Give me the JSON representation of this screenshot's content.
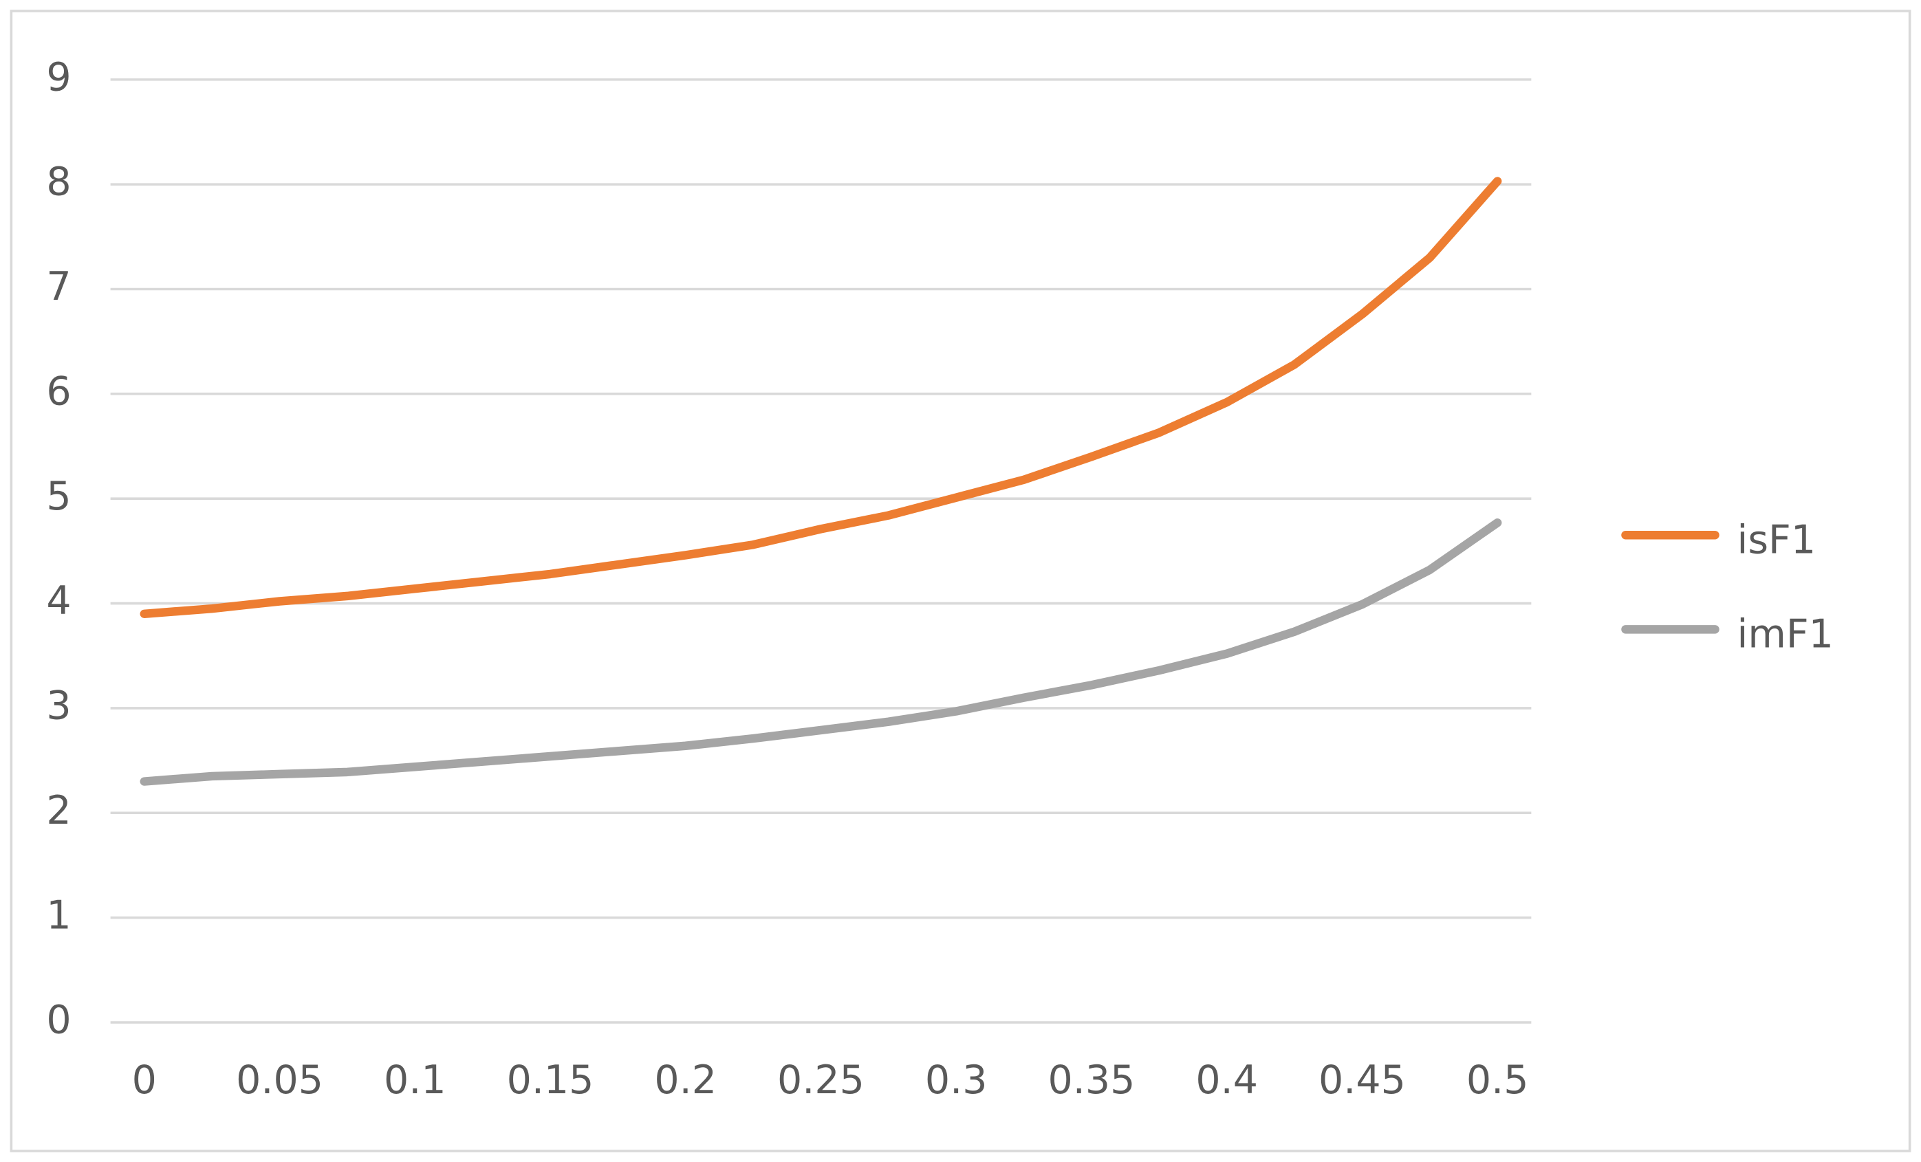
{
  "chart_data": {
    "type": "line",
    "categories": [
      "0",
      null,
      "0.05",
      null,
      "0.1",
      null,
      "0.15",
      null,
      "0.2",
      null,
      "0.25",
      null,
      "0.3",
      null,
      "0.35",
      null,
      "0.4",
      null,
      "0.45",
      null,
      "0.5"
    ],
    "series": [
      {
        "name": "isF1",
        "color": "#ed7d31",
        "values": [
          3.9,
          3.95,
          4.02,
          4.07,
          4.14,
          4.21,
          4.28,
          4.37,
          4.46,
          4.56,
          4.71,
          4.84,
          5.01,
          5.18,
          5.4,
          5.63,
          5.92,
          6.28,
          6.76,
          7.3,
          8.03
        ]
      },
      {
        "name": "imF1",
        "color": "#a5a5a5",
        "values": [
          2.3,
          2.35,
          2.37,
          2.39,
          2.44,
          2.49,
          2.54,
          2.59,
          2.64,
          2.71,
          2.79,
          2.87,
          2.97,
          3.1,
          3.22,
          3.36,
          3.52,
          3.73,
          3.99,
          4.32,
          4.77
        ]
      }
    ],
    "ylim": [
      0,
      9
    ],
    "yticks": [
      0,
      1,
      2,
      3,
      4,
      5,
      6,
      7,
      8,
      9
    ],
    "grid": true,
    "legend": "right"
  }
}
